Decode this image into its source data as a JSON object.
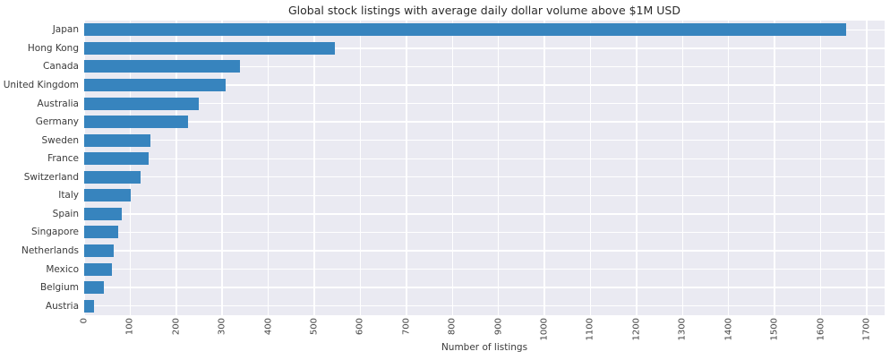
{
  "chart_data": {
    "type": "bar",
    "orientation": "horizontal",
    "title": "Global stock listings with average daily dollar volume above $1M USD",
    "xlabel": "Number of listings",
    "ylabel": "",
    "categories": [
      "Japan",
      "Hong Kong",
      "Canada",
      "United Kingdom",
      "Australia",
      "Germany",
      "Sweden",
      "France",
      "Switzerland",
      "Italy",
      "Spain",
      "Singapore",
      "Netherlands",
      "Mexico",
      "Belgium",
      "Austria"
    ],
    "values": [
      1655,
      545,
      338,
      307,
      249,
      226,
      144,
      140,
      122,
      101,
      82,
      74,
      64,
      60,
      43,
      21
    ],
    "xlim": [
      0,
      1739
    ],
    "xticks": [
      0,
      100,
      200,
      300,
      400,
      500,
      600,
      700,
      800,
      900,
      1000,
      1100,
      1200,
      1300,
      1400,
      1500,
      1600,
      1700
    ],
    "xtick_rotation_deg": 90,
    "grid": true,
    "legend": false,
    "bar_color": "#3784be",
    "plot_bg": "#eaeaf2",
    "grid_color": "#ffffff",
    "figure_bg": "#ffffff"
  }
}
